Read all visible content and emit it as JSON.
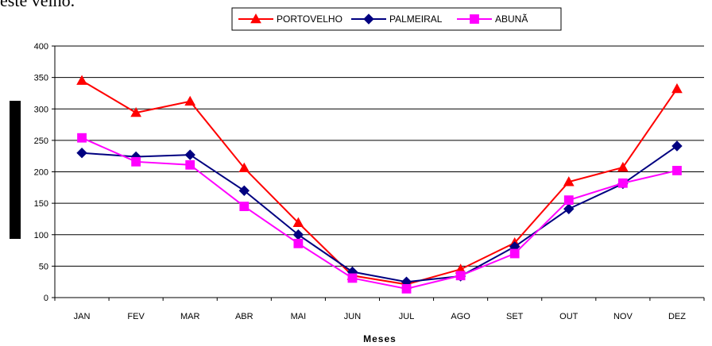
{
  "page": {
    "top_text": "este velho."
  },
  "chart_data": {
    "type": "line",
    "title": "",
    "xlabel": "Meses",
    "ylabel": "",
    "ylim": [
      0,
      400
    ],
    "yticks": [
      0,
      50,
      100,
      150,
      200,
      250,
      300,
      350,
      400
    ],
    "grid": true,
    "legend_position": "top",
    "categories": [
      "JAN",
      "FEV",
      "MAR",
      "ABR",
      "MAI",
      "JUN",
      "JUL",
      "AGO",
      "SET",
      "OUT",
      "NOV",
      "DEZ"
    ],
    "series": [
      {
        "name": "PORTOVELHO",
        "color": "#ff0000",
        "marker": "triangle",
        "values": [
          345,
          294,
          312,
          206,
          119,
          35,
          21,
          45,
          87,
          184,
          207,
          332
        ]
      },
      {
        "name": "PALMEIRAL",
        "color": "#000080",
        "marker": "diamond",
        "values": [
          230,
          224,
          227,
          170,
          100,
          41,
          25,
          34,
          81,
          141,
          181,
          241
        ]
      },
      {
        "name": "ABUNÃ",
        "color": "#ff00ff",
        "marker": "square",
        "values": [
          254,
          216,
          211,
          145,
          86,
          31,
          14,
          35,
          70,
          155,
          182,
          202
        ]
      }
    ]
  }
}
